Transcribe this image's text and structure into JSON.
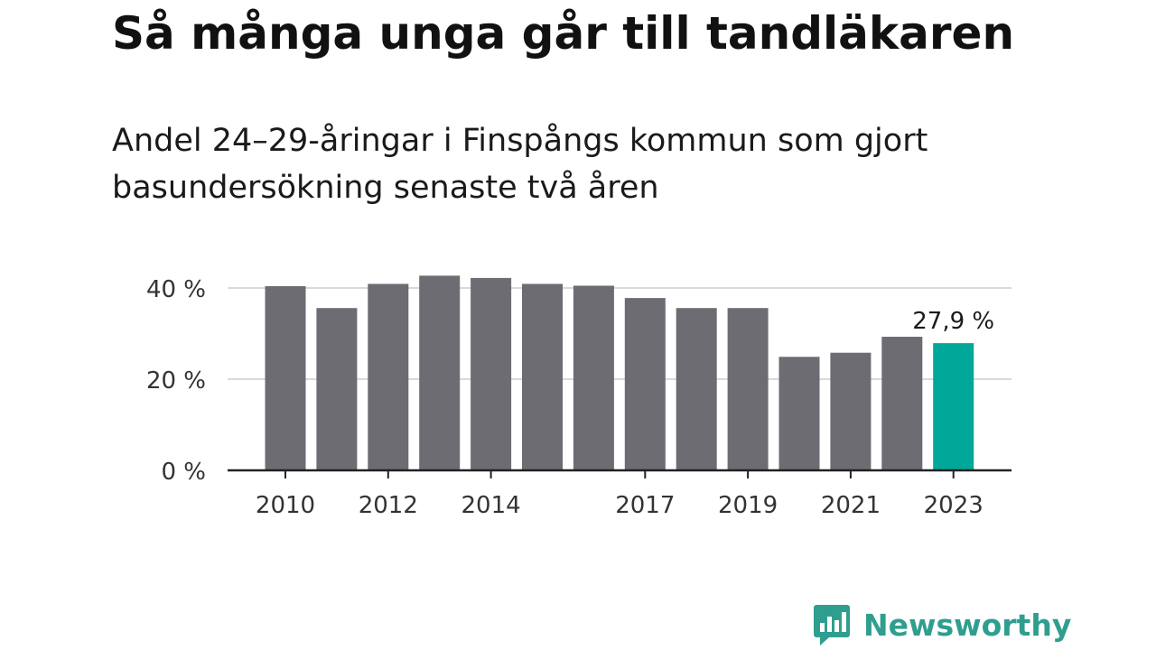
{
  "title": "Så många unga går till tandläkaren",
  "subtitle": "Andel 24–29-åringar i Finspångs kommun som gjort basundersökning senaste två åren",
  "brand": {
    "name": "Newsworthy",
    "color": "#2f9e8f",
    "icon": "chart-bubble-icon"
  },
  "colors": {
    "bar": "#6d6c72",
    "highlight": "#00a89a",
    "grid": "#d9d9d9",
    "axis": "#222222"
  },
  "chart_data": {
    "type": "bar",
    "categories": [
      "2010",
      "2011",
      "2012",
      "2013",
      "2014",
      "2015",
      "2016",
      "2017",
      "2018",
      "2019",
      "2020",
      "2021",
      "2022",
      "2023"
    ],
    "values": [
      40.4,
      35.6,
      40.9,
      42.7,
      42.2,
      40.9,
      40.5,
      37.8,
      35.6,
      35.6,
      24.9,
      25.8,
      29.3,
      27.9
    ],
    "highlight_index": 13,
    "xtick_labels": [
      "2010",
      "2012",
      "2014",
      "2017",
      "2019",
      "2021",
      "2023"
    ],
    "ytick_labels": [
      "0 %",
      "20 %",
      "40 %"
    ],
    "ytick_values": [
      0,
      20,
      40
    ],
    "ylim": [
      0,
      45
    ],
    "data_labels": [
      {
        "category": "2023",
        "text": "27,9 %"
      }
    ],
    "grid": true,
    "legend": "none",
    "xlabel": "",
    "ylabel": ""
  }
}
